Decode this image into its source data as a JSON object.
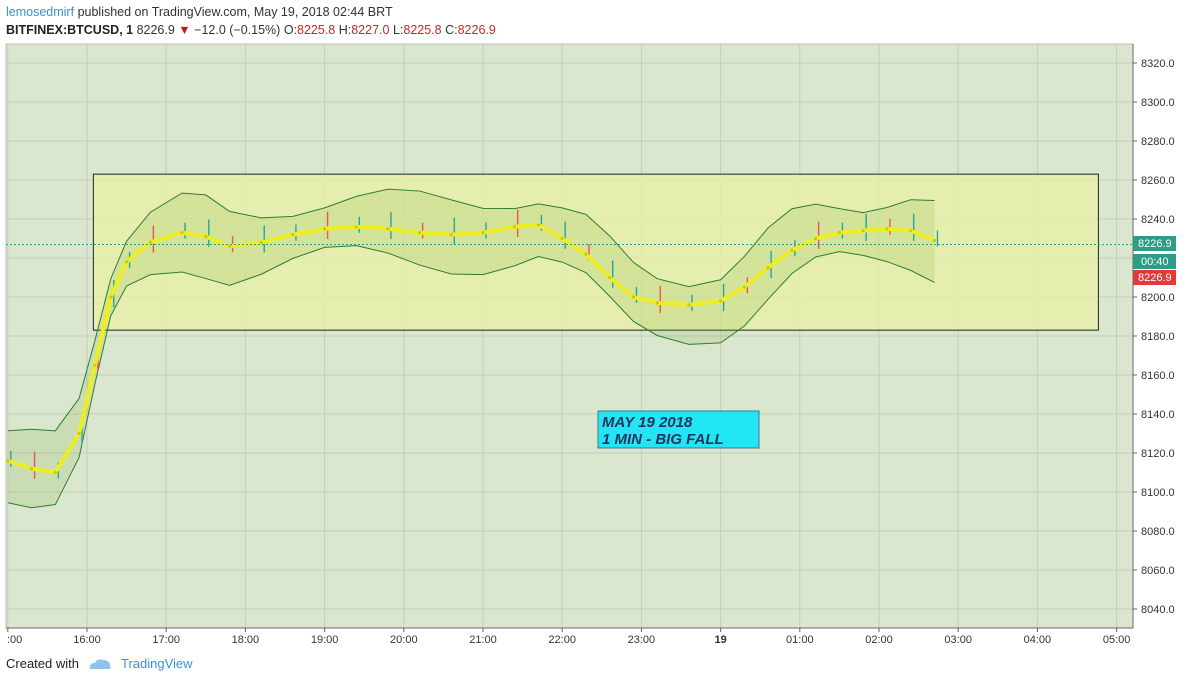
{
  "header": {
    "author": "lemosedmirf",
    "published_text": "published on TradingView.com, May 19, 2018 02:44 BRT"
  },
  "symbol_line": {
    "symbol": "BITFINEX:BTCUSD, 1",
    "last": "8226.9",
    "change": "−12.0 (−0.15%)",
    "o_label": "O:",
    "o": "8225.8",
    "h_label": "H:",
    "h": "8227.0",
    "l_label": "L:",
    "l": "8225.8",
    "c_label": "C:",
    "c": "8226.9"
  },
  "footer": {
    "created_with": "Created with",
    "brand": "TradingView"
  },
  "annotation": {
    "line1": "MAY 19 2018",
    "line2": "1 MIN - BIG FALL"
  },
  "price_tags": {
    "last": "8226.9",
    "countdown": "00:40",
    "close": "8226.9"
  },
  "colors": {
    "background": "#dbe6cf",
    "range_box": "#eaf0a4",
    "ma": "#eeee22",
    "cloud_bull": "#7fb33f",
    "cloud_bear": "#d98a38",
    "candle_up": "#26a69a",
    "candle_down": "#ef5350",
    "annotation_bg": "#22e5f5"
  },
  "chart_data": {
    "type": "line",
    "title": "",
    "xlabel": "",
    "ylabel": "",
    "ylim": [
      8033,
      8328
    ],
    "y_ticks": [
      8040.0,
      8060.0,
      8080.0,
      8100.0,
      8120.0,
      8140.0,
      8160.0,
      8180.0,
      8200.0,
      8220.0,
      8240.0,
      8260.0,
      8280.0,
      8300.0,
      8320.0
    ],
    "x_tick_labels": [
      ":00",
      "16:00",
      "17:00",
      "18:00",
      "19:00",
      "20:00",
      "21:00",
      "22:00",
      "23:00",
      "19",
      "01:00",
      "02:00",
      "03:00",
      "04:00",
      "05:00"
    ],
    "x_tick_hours": [
      15,
      16,
      17,
      18,
      19,
      20,
      21,
      22,
      23,
      24,
      25,
      26,
      27,
      28,
      29
    ],
    "xlim_hours": [
      14.98,
      30.2
    ],
    "range_box": {
      "x_hours": [
        16.08,
        28.77
      ],
      "y": [
        8183,
        8263
      ]
    },
    "series": [
      {
        "name": "",
        "x_hours": [
          15.0,
          15.3,
          15.6,
          15.9,
          16.1,
          16.3,
          16.5,
          16.8,
          17.2,
          17.5,
          17.8,
          18.2,
          18.6,
          19.0,
          19.4,
          19.8,
          20.2,
          20.6,
          21.0,
          21.4,
          21.7,
          22.0,
          22.3,
          22.6,
          22.9,
          23.2,
          23.6,
          24.0,
          24.3,
          24.6,
          24.9,
          25.2,
          25.5,
          25.8,
          26.1,
          26.4,
          26.7
        ],
        "values": [
          8116,
          8112,
          8110,
          8130,
          8165,
          8200,
          8218,
          8228,
          8233,
          8231,
          8226,
          8228,
          8232,
          8235,
          8236,
          8235,
          8233,
          8232,
          8233,
          8236,
          8237,
          8230,
          8222,
          8210,
          8200,
          8197,
          8196,
          8198,
          8205,
          8215,
          8224,
          8230,
          8233,
          8234,
          8235,
          8234,
          8229
        ]
      }
    ],
    "last_price": 8226.9
  }
}
